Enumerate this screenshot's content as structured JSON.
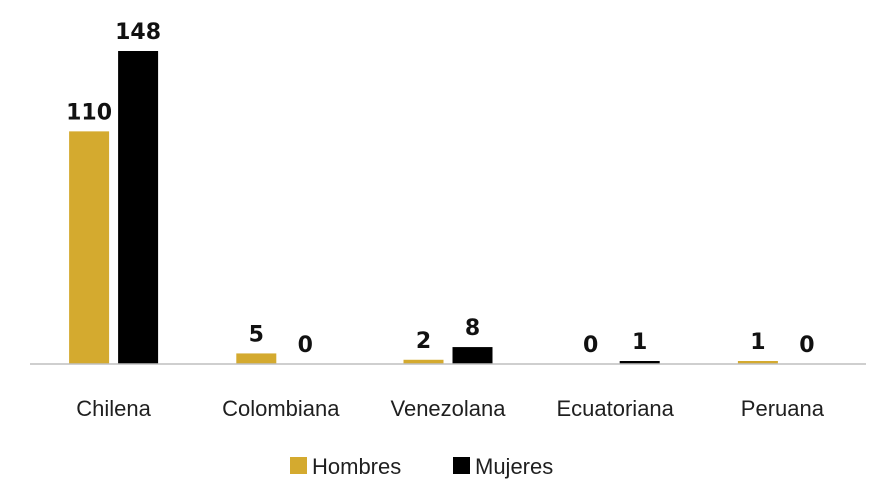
{
  "chart_data": {
    "type": "bar",
    "title": "",
    "xlabel": "",
    "ylabel": "",
    "categories": [
      "Chilena",
      "Colombiana",
      "Venezolana",
      "Ecuatoriana",
      "Peruana"
    ],
    "series": [
      {
        "name": "Hombres",
        "color": "#d4aa2f",
        "values": [
          110,
          5,
          2,
          0,
          1
        ]
      },
      {
        "name": "Mujeres",
        "color": "#000000",
        "values": [
          148,
          0,
          8,
          1,
          0
        ]
      }
    ],
    "ylim": [
      0,
      160
    ],
    "grid": false,
    "data_labels": true,
    "legend_position": "bottom"
  }
}
